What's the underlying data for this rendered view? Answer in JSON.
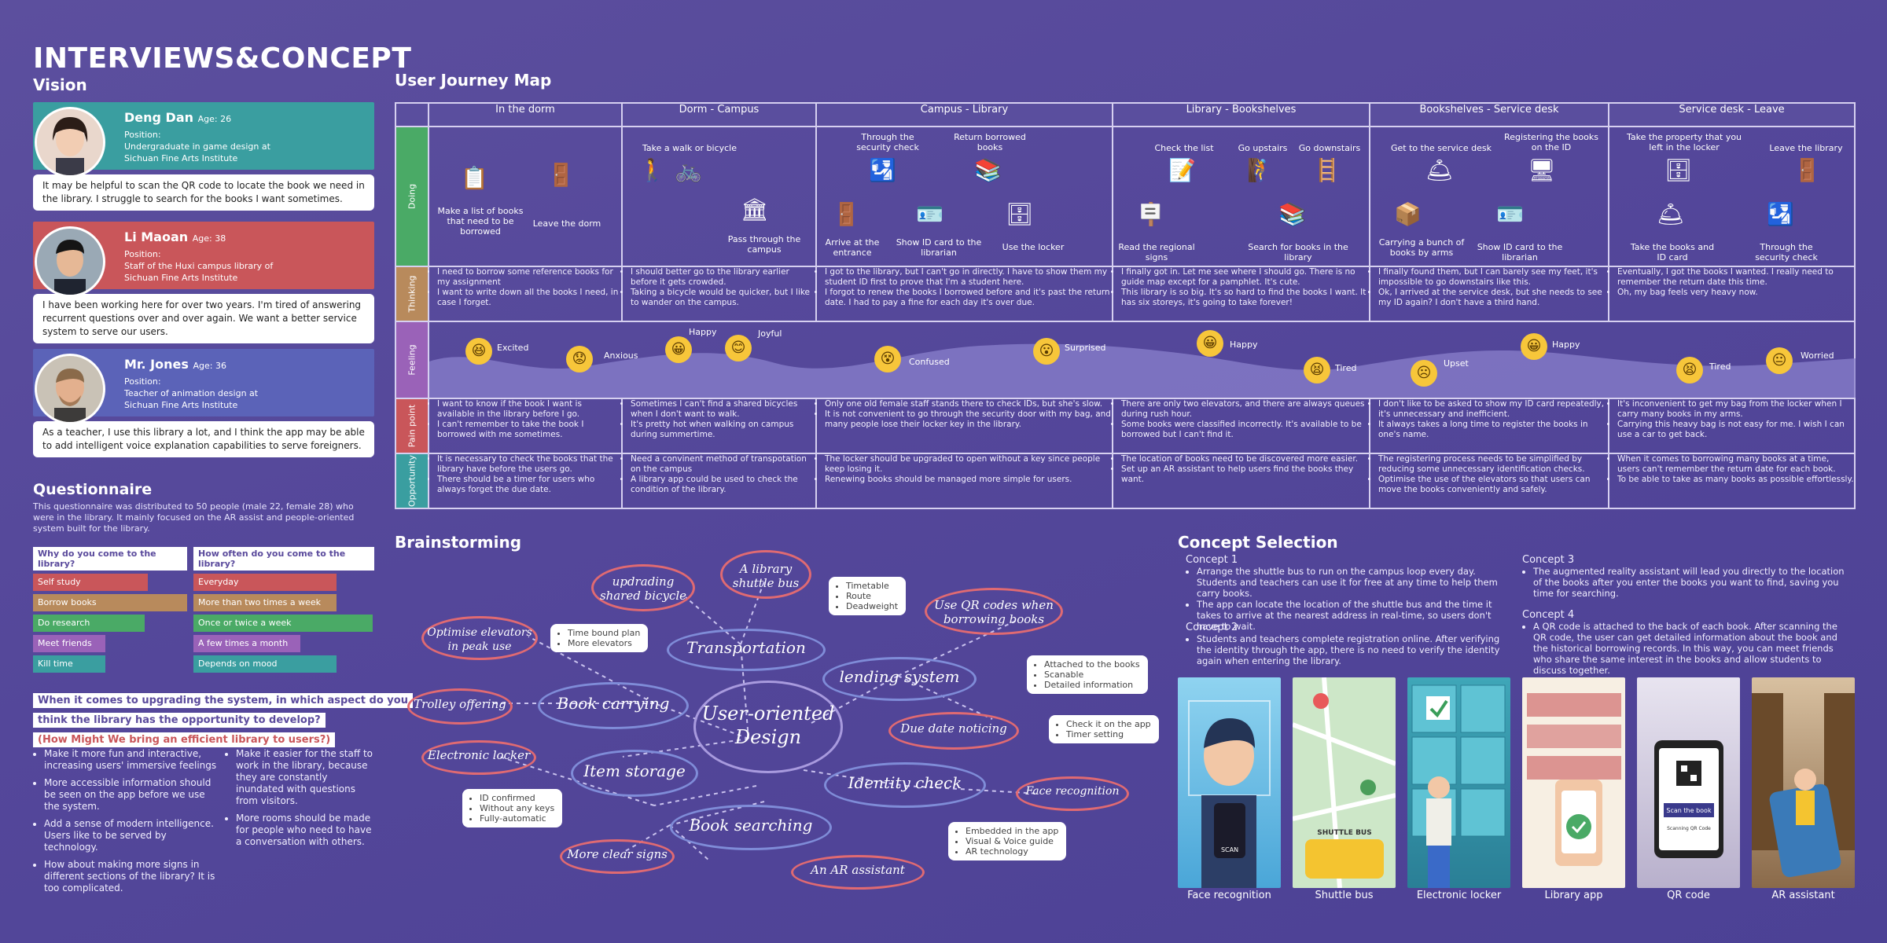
{
  "title": "INTERVIEWS&CONCEPT",
  "vision_label": "Vision",
  "personas": [
    {
      "name": "Deng Dan",
      "age": "Age: 26",
      "info": "Position:\nUndergraduate in game design at\nSichuan Fine Arts Institute",
      "quote": "It may be helpful to scan the QR code to locate the book we need in the library. I struggle to search for the books I want sometimes.",
      "color": "#3a9ea0"
    },
    {
      "name": "Li Maoan",
      "age": "Age: 38",
      "info": "Position:\nStaff of the Huxi campus library of\nSichuan Fine Arts Institute",
      "quote": "I have been working here for over two years. I'm tired of answering recurrent questions over and over again. We want a better service system to serve our users.",
      "color": "#c9565a"
    },
    {
      "name": "Mr. Jones",
      "age": "Age: 36",
      "info": "Position:\nTeacher of animation design at\nSichuan Fine Arts Institute",
      "quote": "As a teacher, I use this library a lot, and I think the app may be able to add intelligent voice explanation capabilities to serve foreigners.",
      "color": "#5b63b8"
    }
  ],
  "questionnaire": {
    "title": "Questionnaire",
    "intro": "This questionnaire was distributed to 50 people (male 22, female 28) who were in the library. It mainly focused on the AR assist and people-oriented system built for the library.",
    "q1": "Why do you come to the library?",
    "q2": "How often do you come to the library?",
    "a1": [
      "Self study",
      "Borrow books",
      "Do research",
      "Meet friends",
      "Kill time"
    ],
    "a2": [
      "Everyday",
      "More than two times a week",
      "Once or twice a week",
      "A few times a month",
      "Depends on mood"
    ],
    "question3a": "When it comes to upgrading the system, in which aspect do you",
    "question3b": "think the library has the opportunity to develop?",
    "hmw": "(How Might We bring an efficient library to users?)",
    "left_bullets": [
      "Make it more fun and interactive, increasing users' immersive feelings",
      "More accessible information should be seen on the app before we use the system.",
      "Add a sense of modern intelligence. Users like to be served by technology.",
      "How about making more signs in different sections of the library? It is too complicated."
    ],
    "right_bullets": [
      "Make it easier for the staff to work in the library, because they are constantly inundated with questions from visitors.",
      "More rooms should be made for people who need to have a conversation with others."
    ]
  },
  "journey": {
    "title": "User Journey Map",
    "stages": [
      "In the dorm",
      "Dorm - Campus",
      "Campus - Library",
      "Library - Bookshelves",
      "Bookshelves - Service desk",
      "Service desk - Leave"
    ],
    "row_labels": [
      "Doing",
      "Thinking",
      "Feeling",
      "Pain point",
      "Opportunity"
    ],
    "doing": [
      [
        "Make a list of books that need to be borrowed",
        "Leave the dorm"
      ],
      [
        "Take a walk or bicycle",
        "Pass through the campus"
      ],
      [
        "Through the security check",
        "Return borrowed books",
        "Arrive at the entrance",
        "Show ID card to the librarian",
        "Use the locker"
      ],
      [
        "Check the list",
        "Go upstairs",
        "Go downstairs",
        "Read the regional signs",
        "Search for books in the library"
      ],
      [
        "Get to the service desk",
        "Registering the books on the ID",
        "Carrying a bunch of books by arms",
        "Show ID card to the librarian"
      ],
      [
        "Take the property that you left in the locker",
        "Leave the library",
        "Take the books and ID card",
        "Through the security check"
      ]
    ],
    "thinking": [
      [
        "I need to borrow some reference books for my assignment",
        "I want to write down all the books I need, in case I forget."
      ],
      [
        "I should better go to the library earlier before it gets crowded.",
        "Taking a bicycle would be quicker, but I like to wander on the campus."
      ],
      [
        "I got to the library, but I can't go in directly. I have to show them my student ID first to prove that I'm a student here.",
        "I forgot to renew the books I borrowed before and it's past the return date. I had to pay a fine for each day it's over due."
      ],
      [
        "I finally got in. Let me see where I should go. There is no guide map except for a pamphlet. It's cute.",
        "This library is so big. It's so hard to find the books I want. It has six storeys, it's going to take forever!"
      ],
      [
        "I finally found them, but I can barely see my feet, it's impossible to go downstairs like this.",
        "Ok, I arrived at the service desk, but she needs to see my ID again? I don't have a third hand."
      ],
      [
        "Eventually, I got the books I wanted. I really need to remember the return date this time.",
        "Oh, my bag feels very heavy now."
      ]
    ],
    "feelings": [
      "Excited",
      "Anxious",
      "Happy",
      "Joyful",
      "Confused",
      "Surprised",
      "Happy",
      "Tired",
      "Upset",
      "Happy",
      "Tired",
      "Worried"
    ],
    "pain": [
      [
        "I want to know if the book I want is available in the library before I go.",
        "I can't remember to take the book I borrowed with me sometimes."
      ],
      [
        "Sometimes I can't find a shared bicycles when I don't want to walk.",
        "It's pretty hot when walking on campus during summertime."
      ],
      [
        "Only one old female staff stands there to check IDs, but she's slow.",
        "It is not convenient to go through the security door with my bag, and many people lose their locker key in the library."
      ],
      [
        "There are only two elevators, and there are always queues during rush hour.",
        "Some books were classified incorrectly. It's available to be borrowed but I can't find it."
      ],
      [
        "I don't like to be asked to show my ID card repeatedly, it's unnecessary and inefficient.",
        "It always takes a long time to register the books in one's name."
      ],
      [
        "It's inconvenient to get my bag from the locker when I carry many books in my arms.",
        "Carrying this heavy bag is not easy for me. I wish I can use a car to get back."
      ]
    ],
    "opportunity": [
      [
        "It is necessary to check the books that the library have before the users go.",
        "There should be a timer for users who always forget the due date."
      ],
      [
        "Need a convinent method of transpotation on the campus",
        "A library app could be used to check the condition of the library."
      ],
      [
        "The locker should be upgraded to open without a key since people keep losing it.",
        "Renewing books should be managed more simple for users."
      ],
      [
        "The location of books need to be discovered more easier.",
        "Set up an AR assistant to help users find the books they want."
      ],
      [
        "The registering process needs to be simplified by reducing some unnecessary identification checks.",
        "Optimise the use of the elevators so that users can move the books conveniently and safely."
      ],
      [
        "When it comes to borrowing many books at a time, users can't remember the return date for each book.",
        "To be able to take as many books as possible effortlessly."
      ]
    ]
  },
  "brainstorm": {
    "title": "Brainstorming",
    "center": "User-oriented Design",
    "main": [
      "Transportation",
      "lending system",
      "Book carrying",
      "Item storage",
      "Identity check",
      "Book searching"
    ],
    "ideas": [
      "updrading shared bicycle",
      "A library shuttle bus",
      "Use QR codes when borrowing books",
      "Optimise elevators in peak use",
      "Trolley offering",
      "Due date noticing",
      "Electronic locker",
      "Face recognition",
      "More clear signs",
      "An AR assistant"
    ],
    "notes": {
      "shuttle": [
        "Timetable",
        "Route",
        "Deadweight"
      ],
      "elevator": [
        "Time bound plan",
        "More elevators"
      ],
      "qr": [
        "Attached to the books",
        "Scanable",
        "Detailed information"
      ],
      "due": [
        "Check it on the app",
        "Timer setting"
      ],
      "locker": [
        "ID confirmed",
        "Without any keys",
        "Fully-automatic"
      ],
      "ar": [
        "Embedded in the app",
        "Visual & Voice guide",
        "AR technology"
      ]
    }
  },
  "concept": {
    "title": "Concept Selection",
    "c1_title": "Concept 1",
    "c1": [
      "Arrange the shuttle bus to run on the campus loop every day. Students and teachers can use it for free at any time to help them carry books.",
      "The app can locate the location of the shuttle bus and the time it takes to arrive at the nearest address in real-time, so users don't have to wait."
    ],
    "c2_title": "Concept 2",
    "c2": [
      "Students and teachers complete registration online. After verifying the identity through the app, there is no need to verify the identity again when entering the library."
    ],
    "c3_title": "Concept 3",
    "c3": [
      "The augmented reality assistant will lead you directly to the location of the books after you enter the books you want to find, saving you time for searching."
    ],
    "c4_title": "Concept 4",
    "c4": [
      "A QR code is attached to the back of each book. After scanning the QR code, the user can get detailed information about the book and the historical borrowing records. In this way, you can meet friends who share the same interest in the books and allow students to discuss together."
    ],
    "images": [
      "Face recognition",
      "Shuttle bus",
      "Electronic locker",
      "Library app",
      "QR code",
      "AR assistant"
    ],
    "shuttle_sign": "SHUTTLE BUS",
    "scan_label": "Scan the book",
    "scan_sub": "Scanning QR Code"
  }
}
